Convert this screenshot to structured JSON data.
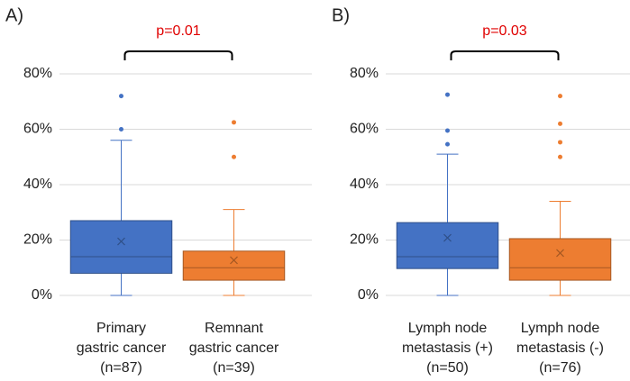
{
  "chart_data": [
    {
      "type": "box",
      "panel_label": "A)",
      "annotation": "p=0.01",
      "annotation_color": "#e00000",
      "categories": [
        [
          "Primary",
          "gastric cancer",
          "(n=87)"
        ],
        [
          "Remnant",
          "gastric cancer",
          "(n=39)"
        ]
      ],
      "boxes": [
        {
          "color": "#4472c4",
          "min": 0,
          "q1": 8,
          "median": 14,
          "q3": 27,
          "max": 56,
          "mean": 19.5,
          "outliers": [
            60,
            72
          ]
        },
        {
          "color": "#ed7d31",
          "min": 0,
          "q1": 5.5,
          "median": 10,
          "q3": 16,
          "max": 31,
          "mean": 12.7,
          "outliers": [
            50,
            62.5
          ]
        }
      ],
      "ylim": [
        0,
        80
      ],
      "yticks": [
        {
          "value": 0,
          "label": "0%"
        },
        {
          "value": 20,
          "label": "20%"
        },
        {
          "value": 40,
          "label": "40%"
        },
        {
          "value": 60,
          "label": "60%"
        },
        {
          "value": 80,
          "label": "80%"
        }
      ],
      "grid": true
    },
    {
      "type": "box",
      "panel_label": "B)",
      "annotation": "p=0.03",
      "annotation_color": "#e00000",
      "categories": [
        [
          "Lymph node",
          "metastasis (+)",
          "(n=50)"
        ],
        [
          "Lymph node",
          "metastasis (-)",
          "(n=76)"
        ]
      ],
      "boxes": [
        {
          "color": "#4472c4",
          "min": 0,
          "q1": 9.7,
          "median": 14,
          "q3": 26.3,
          "max": 51,
          "mean": 20.8,
          "outliers": [
            54.6,
            59.5,
            72.5
          ]
        },
        {
          "color": "#ed7d31",
          "min": 0,
          "q1": 5.5,
          "median": 10,
          "q3": 20.5,
          "max": 34,
          "mean": 15.3,
          "outliers": [
            50,
            55.3,
            62,
            72
          ]
        }
      ],
      "ylim": [
        0,
        80
      ],
      "yticks": [
        {
          "value": 0,
          "label": "0%"
        },
        {
          "value": 20,
          "label": "20%"
        },
        {
          "value": 40,
          "label": "40%"
        },
        {
          "value": 60,
          "label": "60%"
        },
        {
          "value": 80,
          "label": "80%"
        }
      ],
      "grid": true
    }
  ]
}
